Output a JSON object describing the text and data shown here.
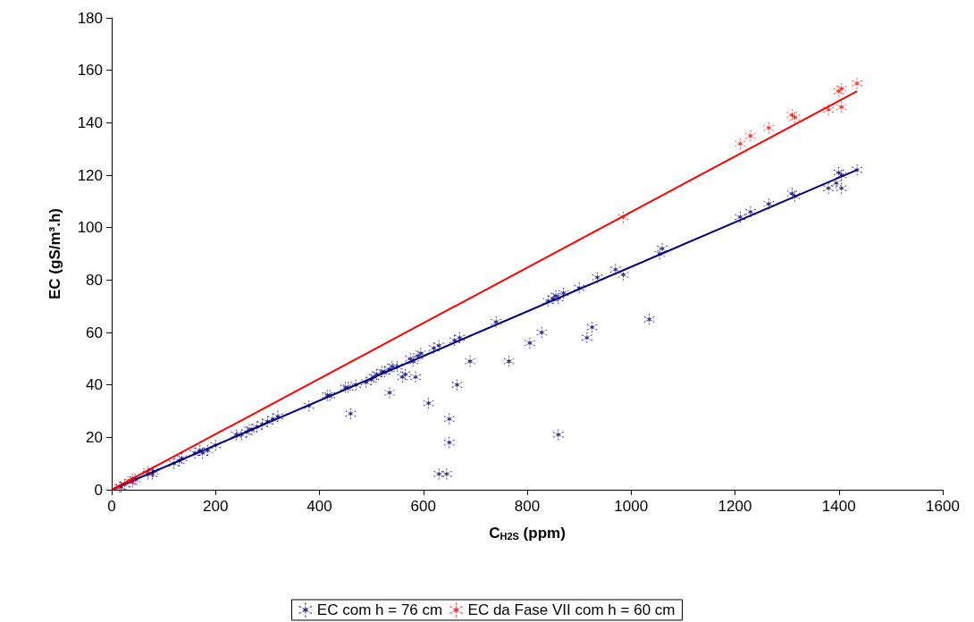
{
  "chart_data": {
    "type": "scatter",
    "xlabel": "C$_{H2S}$ (ppm)",
    "ylabel": "EC (gS/m³.h)",
    "xlim": [
      0,
      1600
    ],
    "xticks": [
      0,
      200,
      400,
      600,
      800,
      1000,
      1200,
      1400,
      1600
    ],
    "ylim": [
      0,
      180
    ],
    "yticks": [
      0,
      20,
      40,
      60,
      80,
      100,
      120,
      140,
      160,
      180
    ],
    "grid": false,
    "legend": "bottom",
    "marker": "cross",
    "series": [
      {
        "name": "EC com h = 76 cm",
        "color": "#000080",
        "x": [
          18,
          25,
          40,
          45,
          70,
          78,
          80,
          120,
          130,
          135,
          160,
          170,
          175,
          185,
          200,
          240,
          250,
          260,
          265,
          270,
          280,
          290,
          300,
          310,
          320,
          380,
          415,
          420,
          450,
          455,
          460,
          470,
          490,
          500,
          505,
          510,
          520,
          525,
          535,
          540,
          535,
          550,
          560,
          565,
          575,
          580,
          590,
          595,
          585,
          610,
          620,
          630,
          630,
          645,
          650,
          650,
          660,
          665,
          670,
          690,
          740,
          765,
          805,
          828,
          840,
          850,
          855,
          860,
          860,
          870,
          900,
          915,
          925,
          935,
          970,
          985,
          1035,
          1055,
          1060,
          1210,
          1230,
          1265,
          1310,
          1315,
          1380,
          1395,
          1400,
          1405,
          1405,
          1435
        ],
        "values": [
          1,
          2,
          3,
          4,
          6,
          6,
          7,
          10,
          11,
          12,
          14,
          15,
          14,
          15,
          17,
          21,
          21,
          22,
          23,
          23,
          24,
          25,
          26,
          27,
          28,
          32,
          36,
          36,
          39,
          39,
          29,
          40,
          41,
          42,
          43,
          44,
          45,
          45,
          46,
          47,
          37,
          47,
          43,
          44,
          50,
          49,
          51,
          52,
          43,
          33,
          54,
          55,
          6,
          6,
          27,
          18,
          57,
          40,
          58,
          49,
          64,
          49,
          56,
          60,
          72,
          73,
          74,
          73,
          21,
          75,
          77,
          58,
          62,
          81,
          84,
          82,
          65,
          90,
          92,
          104,
          106,
          109,
          113,
          112,
          115,
          117,
          121,
          120,
          115,
          122
        ]
      },
      {
        "name": "EC da Fase VII com h = 60 cm",
        "color": "#ff0000",
        "x": [
          15,
          35,
          40,
          70,
          985,
          1210,
          1230,
          1265,
          1310,
          1315,
          1380,
          1400,
          1405,
          1405,
          1435
        ],
        "values": [
          1,
          3,
          4,
          7,
          104,
          132,
          135,
          138,
          143,
          142,
          145,
          152,
          153,
          146,
          155
        ]
      },
      {
        "type": "line",
        "color": "#000080",
        "marker": "none",
        "line_style": "solid",
        "x": [
          0,
          1435
        ],
        "values": [
          0,
          122
        ]
      },
      {
        "type": "line",
        "color": "#ff0000",
        "marker": "none",
        "line_style": "solid",
        "x": [
          0,
          1435
        ],
        "values": [
          0,
          152
        ]
      }
    ]
  }
}
